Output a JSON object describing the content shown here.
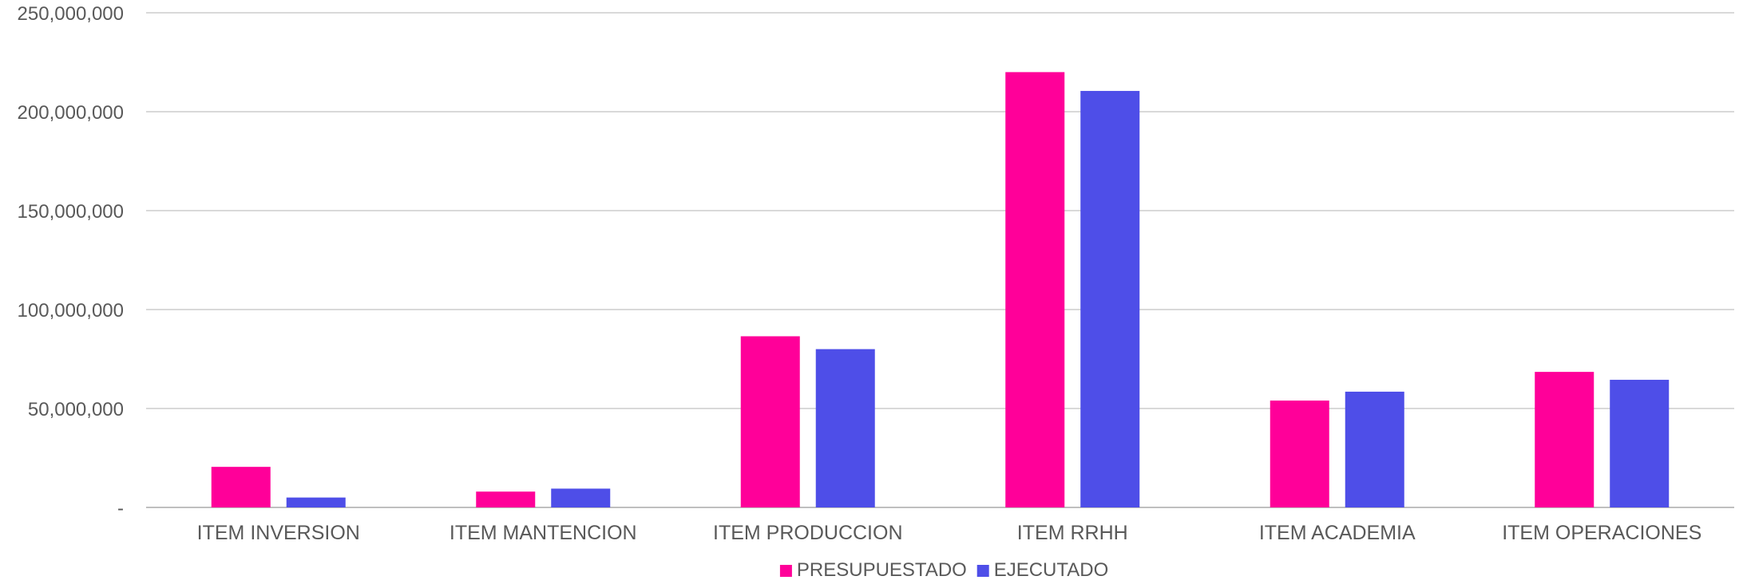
{
  "chart_data": {
    "type": "bar",
    "title": "",
    "xlabel": "",
    "ylabel": "",
    "categories": [
      "ITEM INVERSION",
      "ITEM MANTENCION",
      "ITEM PRODUCCION",
      "ITEM RRHH",
      "ITEM ACADEMIA",
      "ITEM OPERACIONES"
    ],
    "series": [
      {
        "name": "PRESUPUESTADO",
        "color": "#FF0099",
        "values": [
          20500000,
          8000000,
          86500000,
          220000000,
          54000000,
          68500000
        ]
      },
      {
        "name": "EJECUTADO",
        "color": "#4E4EE8",
        "values": [
          5000000,
          9500000,
          80000000,
          210500000,
          58500000,
          64500000
        ]
      }
    ],
    "ylim": [
      0,
      250000000
    ],
    "yticks": [
      0,
      50000000,
      100000000,
      150000000,
      200000000,
      250000000
    ],
    "ytick_labels": [
      "-",
      "50,000,000",
      "100,000,000",
      "150,000,000",
      "200,000,000",
      "250,000,000"
    ],
    "grid": true,
    "legend_position": "bottom"
  }
}
